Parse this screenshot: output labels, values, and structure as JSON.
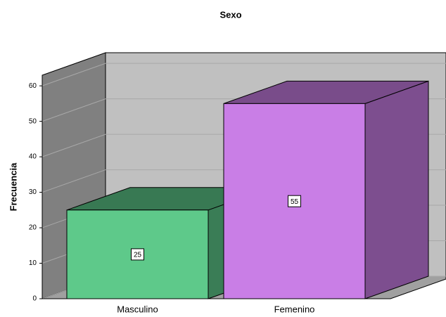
{
  "chart_data": {
    "type": "bar3d",
    "title": "Sexo",
    "y_label": "Frecuencia",
    "categories": [
      "Masculino",
      "Femenino"
    ],
    "values": [
      25,
      55
    ],
    "colors": [
      "#5ec98a",
      "#c97ee6"
    ],
    "ylim": [
      0,
      63
    ],
    "yticks": [
      0,
      10,
      20,
      30,
      40,
      50,
      60
    ],
    "grid": true
  }
}
